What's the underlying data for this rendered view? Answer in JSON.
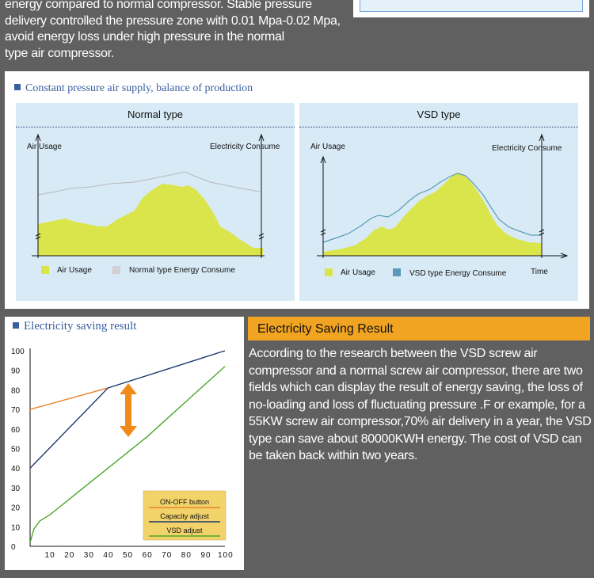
{
  "intro_lines": [
    "energy compared to normal compressor. Stable pressure",
    "delivery controlled the pressure zone with 0.01 Mpa-0.02 Mpa,",
    "avoid energy loss under high pressure in the normal",
    "type air compressor."
  ],
  "supply_panel": {
    "title": "Constant pressure air supply, balance of production",
    "normal": {
      "title": "Normal type",
      "left_axis": "Air Usage",
      "right_axis": "Electricity Consume",
      "legend_air": "Air Usage",
      "legend_energy": "Normal type Energy Consume"
    },
    "vsd": {
      "title": "VSD type",
      "left_axis": "Air Usage",
      "right_axis": "Electricity Consume",
      "legend_air": "Air Usage",
      "legend_energy": "VSD type Energy Consume",
      "time_label": "Time"
    },
    "colors": {
      "air": "#d9e54a",
      "normal_energy": "#d0d0d0",
      "vsd_energy": "#5a9ab8"
    }
  },
  "chart_data": {
    "type": "line",
    "title": "Electricity saving result",
    "xlabel": "",
    "ylabel": "",
    "x_ticks": [
      10,
      20,
      30,
      40,
      50,
      60,
      70,
      80,
      90,
      100
    ],
    "y_ticks": [
      0,
      10,
      20,
      30,
      40,
      50,
      60,
      70,
      80,
      90,
      100
    ],
    "xlim": [
      0,
      100
    ],
    "ylim": [
      0,
      100
    ],
    "series": [
      {
        "name": "ON-OFF button",
        "color": "#e8832a",
        "x": [
          0,
          40
        ],
        "y": [
          70,
          81
        ]
      },
      {
        "name": "Capacity adjust",
        "color": "#1c3a6e",
        "x": [
          0,
          40,
          100
        ],
        "y": [
          40,
          81,
          100
        ]
      },
      {
        "name": "VSD adjust",
        "color": "#4aa82a",
        "x": [
          0,
          2,
          5,
          10,
          20,
          30,
          40,
          50,
          60,
          70,
          80,
          90,
          100
        ],
        "y": [
          2,
          9,
          13,
          16,
          24,
          32,
          40,
          48,
          56,
          65,
          74,
          83,
          92
        ]
      }
    ],
    "annotation": "double-arrow between ON-OFF button and VSD adjust"
  },
  "saving_result": {
    "heading": "Electricity Saving Result",
    "body_lines": [
      "According to the research between the VSD screw air",
      "compressor and a normal screw air compressor, there are two",
      "fields which can display the result of energy saving, the loss of",
      "no-loading and loss of fluctuating pressure .F or example, for a",
      "55KW screw air compressor,70% air delivery in a year, the VSD",
      "type can save about 80000KWH energy. The cost of VSD can",
      "be taken back within two years."
    ]
  }
}
